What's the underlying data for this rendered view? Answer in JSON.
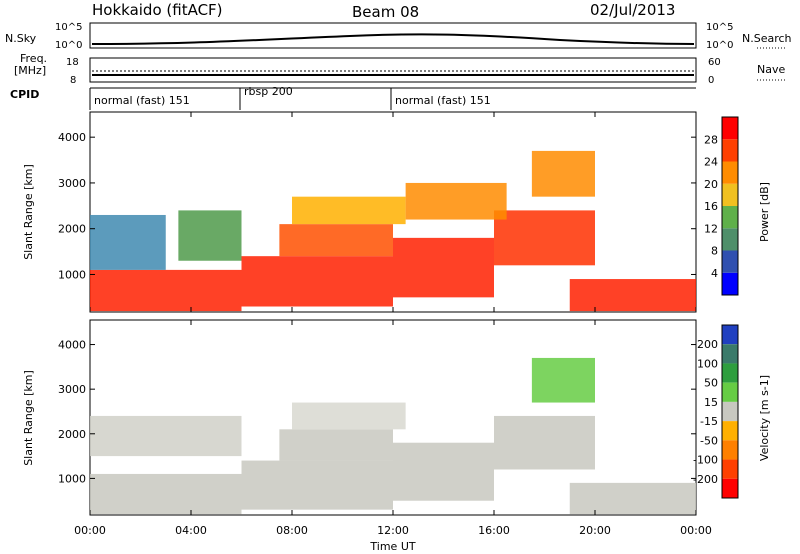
{
  "header": {
    "radar": "Hokkaido (fitACF)",
    "beam": "Beam 08",
    "date": "02/Jul/2013"
  },
  "top_panels": {
    "nsky_label": "N.Sky",
    "nsky_ticks": [
      "10^5",
      "10^0"
    ],
    "nsearch_label": "N.Search",
    "nsearch_ticks": [
      "10^5",
      "10^0"
    ],
    "freq_label_1": "Freq.",
    "freq_label_2": "[MHz]",
    "freq_ticks": [
      "18",
      "8"
    ],
    "nave_label": "Nave",
    "nave_ticks": [
      "60",
      "0"
    ],
    "cpid_label": "CPID",
    "cpid_segments": [
      {
        "label": "normal (fast) 151",
        "start_hour": 0
      },
      {
        "label": "rbsp 200",
        "start_hour": 6
      },
      {
        "label": "normal (fast) 151",
        "start_hour": 12
      }
    ]
  },
  "chart_data": [
    {
      "type": "heatmap",
      "title": "",
      "ylabel": "Slant Range [km]",
      "xlabel": "Time UT",
      "x_ticks": [
        "00:00",
        "04:00",
        "08:00",
        "12:00",
        "16:00",
        "20:00",
        "00:00"
      ],
      "y_ticks": [
        1000,
        2000,
        3000,
        4000
      ],
      "ylim": [
        180,
        4550
      ],
      "xlim_hours": [
        0,
        24
      ],
      "colorbar": {
        "label": "Power [dB]",
        "ticks": [
          "4",
          "8",
          "12",
          "16",
          "20",
          "24",
          "28"
        ],
        "colors": [
          "#0000ff",
          "#3050b0",
          "#4f8f6a",
          "#5fb04a",
          "#f0c020",
          "#ff8c00",
          "#ff4000",
          "#ff0000"
        ]
      },
      "regions": [
        {
          "t0": 0.0,
          "t1": 6.0,
          "r0": 200,
          "r1": 1100,
          "color": "#ff2000"
        },
        {
          "t0": 0.0,
          "t1": 3.0,
          "r0": 1100,
          "r1": 2300,
          "color": "#3f8ab0"
        },
        {
          "t0": 3.5,
          "t1": 6.0,
          "r0": 1300,
          "r1": 2400,
          "color": "#4f9a4a"
        },
        {
          "t0": 6.0,
          "t1": 12.0,
          "r0": 300,
          "r1": 1400,
          "color": "#ff2000"
        },
        {
          "t0": 7.5,
          "t1": 12.0,
          "r0": 1400,
          "r1": 2100,
          "color": "#ff5000"
        },
        {
          "t0": 12.0,
          "t1": 16.0,
          "r0": 500,
          "r1": 1800,
          "color": "#ff2000"
        },
        {
          "t0": 16.0,
          "t1": 20.0,
          "r0": 1200,
          "r1": 2400,
          "color": "#ff3000"
        },
        {
          "t0": 19.0,
          "t1": 24.0,
          "r0": 200,
          "r1": 900,
          "color": "#ff2000"
        },
        {
          "t0": 17.5,
          "t1": 20.0,
          "r0": 2700,
          "r1": 3700,
          "color": "#ff8c00"
        },
        {
          "t0": 8.0,
          "t1": 12.5,
          "r0": 2100,
          "r1": 2700,
          "color": "#ffb000"
        },
        {
          "t0": 12.5,
          "t1": 16.5,
          "r0": 2200,
          "r1": 3000,
          "color": "#ff8c00"
        }
      ]
    },
    {
      "type": "heatmap",
      "title": "",
      "ylabel": "Slant Range [km]",
      "xlabel": "Time UT",
      "x_ticks": [
        "00:00",
        "04:00",
        "08:00",
        "12:00",
        "16:00",
        "20:00",
        "00:00"
      ],
      "y_ticks": [
        1000,
        2000,
        3000,
        4000
      ],
      "ylim": [
        180,
        4550
      ],
      "xlim_hours": [
        0,
        24
      ],
      "colorbar": {
        "label": "Velocity [m s-1]",
        "ticks": [
          "200",
          "100",
          "50",
          "15",
          "-15",
          "-50",
          "-100",
          "-200"
        ],
        "colors": [
          "#2040c0",
          "#3a7a6a",
          "#2e9e3e",
          "#66cc44",
          "#c8c8c0",
          "#ffb000",
          "#ff8000",
          "#ff4000",
          "#ff0000"
        ]
      },
      "regions": [
        {
          "t0": 0.0,
          "t1": 6.0,
          "r0": 200,
          "r1": 1100,
          "color": "#c8c8c0"
        },
        {
          "t0": 0.0,
          "t1": 6.0,
          "r0": 1500,
          "r1": 2400,
          "color": "#d0d0c8"
        },
        {
          "t0": 6.0,
          "t1": 12.0,
          "r0": 300,
          "r1": 1400,
          "color": "#c8c8c0"
        },
        {
          "t0": 7.5,
          "t1": 12.0,
          "r0": 1400,
          "r1": 2100,
          "color": "#c8c8c0"
        },
        {
          "t0": 12.0,
          "t1": 16.0,
          "r0": 500,
          "r1": 1800,
          "color": "#c8c8c0"
        },
        {
          "t0": 16.0,
          "t1": 20.0,
          "r0": 1200,
          "r1": 2400,
          "color": "#c8c8c0"
        },
        {
          "t0": 19.0,
          "t1": 24.0,
          "r0": 200,
          "r1": 900,
          "color": "#c8c8c0"
        },
        {
          "t0": 17.5,
          "t1": 20.0,
          "r0": 2700,
          "r1": 3700,
          "color": "#66cc44"
        },
        {
          "t0": 8.0,
          "t1": 12.5,
          "r0": 2100,
          "r1": 2700,
          "color": "#d8d8d0"
        }
      ]
    }
  ]
}
